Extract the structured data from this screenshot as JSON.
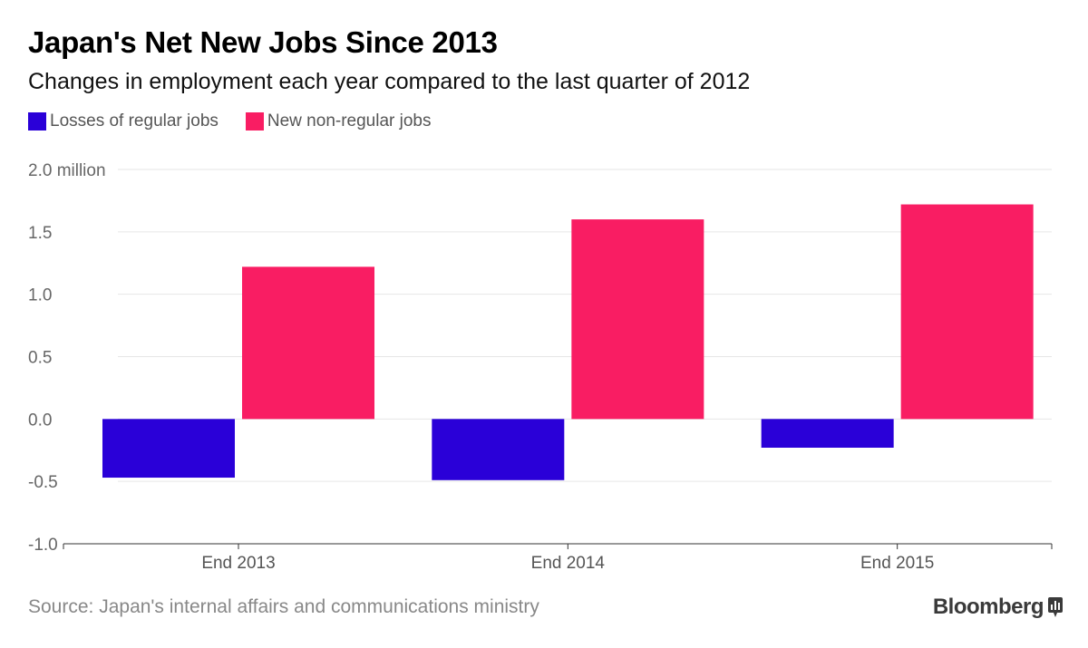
{
  "title": "Japan's Net New Jobs Since 2013",
  "subtitle": "Changes in employment each year compared to the last quarter of 2012",
  "source": "Source: Japan's internal affairs and communications ministry",
  "brand": "Bloomberg",
  "colors": {
    "losses": "#2a00d8",
    "gains": "#f91d63",
    "grid": "#e6e6e6",
    "axis": "#333333",
    "tick_text": "#666666"
  },
  "chart_data": {
    "type": "bar",
    "title": "Japan's Net New Jobs Since 2013",
    "xlabel": "",
    "ylabel": "",
    "unit_label": "2.0 million",
    "ylim": [
      -1.0,
      2.0
    ],
    "yticks": [
      2.0,
      1.5,
      1.0,
      0.5,
      0.0,
      -0.5,
      -1.0
    ],
    "ytick_labels": [
      "2.0 million",
      "1.5",
      "1.0",
      "0.5",
      "0.0",
      "-0.5",
      "-1.0"
    ],
    "categories": [
      "End 2013",
      "End 2014",
      "End 2015"
    ],
    "series": [
      {
        "name": "Losses of regular jobs",
        "values": [
          -0.47,
          -0.49,
          -0.23
        ]
      },
      {
        "name": "New non-regular jobs",
        "values": [
          1.22,
          1.6,
          1.72
        ]
      }
    ],
    "legend": "top-left",
    "grid": true
  }
}
